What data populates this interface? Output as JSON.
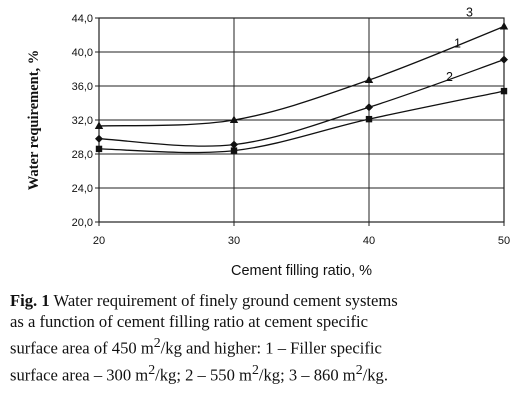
{
  "chart_data": {
    "type": "line",
    "xlabel": "Cement filling ratio, %",
    "ylabel": "Water requirement, %",
    "x": [
      20,
      30,
      40,
      50
    ],
    "xlim": [
      20,
      50
    ],
    "ylim": [
      20,
      44
    ],
    "x_ticks": [
      "20",
      "30",
      "40",
      "50"
    ],
    "y_ticks": [
      "20,0",
      "24,0",
      "28,0",
      "32,0",
      "36,0",
      "40,0",
      "44,0"
    ],
    "grid": true,
    "series": [
      {
        "name": "1",
        "values": [
          29.8,
          29.1,
          33.5,
          39.1
        ],
        "marker": "diamond"
      },
      {
        "name": "2",
        "values": [
          28.6,
          28.4,
          32.1,
          35.4
        ],
        "marker": "square"
      },
      {
        "name": "3",
        "values": [
          31.3,
          32.0,
          36.7,
          43.0
        ],
        "marker": "triangle"
      }
    ]
  },
  "caption": {
    "fig_label": "Fig. 1",
    "line1_rest": " Water requirement of finely ground cement systems",
    "line2": "as a function of cement filling ratio at cement specific",
    "line3_a": "surface area of 450 m",
    "line3_sup": "2",
    "line3_b": "/kg and higher: 1 – Filler specific",
    "line4_a": "surface area – 300 m",
    "line4_sup1": "2",
    "line4_b": "/kg; 2 – 550 m",
    "line4_sup2": "2",
    "line4_c": "/kg; 3 – 860 m",
    "line4_sup3": "2",
    "line4_d": "/kg."
  }
}
